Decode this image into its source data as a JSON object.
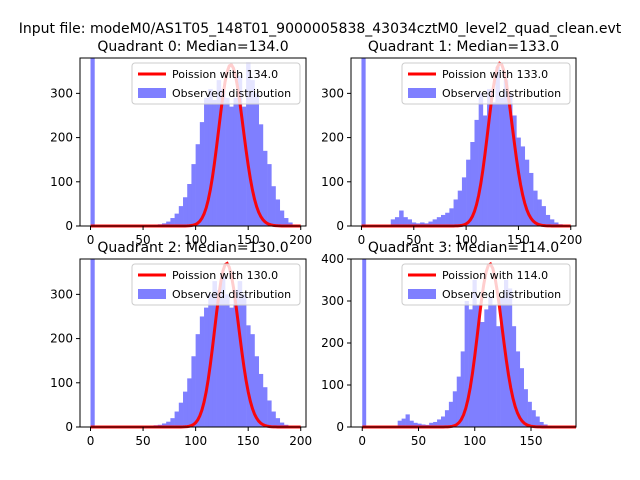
{
  "suptitle": "Input file: modeM0/AS1T05_148T01_9000005838_43034cztM0_level2_quad_clean.evt",
  "colors": {
    "observed": "#7f7fff",
    "poisson": "#ff0000"
  },
  "chart_data": [
    {
      "type": "bar",
      "title": "Quadrant 0: Median=134.0",
      "median": 134.0,
      "xlim": [
        -10,
        205
      ],
      "ylim": [
        0,
        380
      ],
      "xticks": [
        0,
        50,
        100,
        150,
        200
      ],
      "yticks": [
        0,
        100,
        200,
        300
      ],
      "legend": [
        "Poission with 134.0",
        "Observed distribution"
      ],
      "bin_width": 4,
      "zero_bin_count": 380,
      "observed": {
        "bin_starts": [
          48,
          52,
          56,
          60,
          64,
          68,
          72,
          76,
          80,
          84,
          88,
          92,
          96,
          100,
          104,
          108,
          112,
          116,
          120,
          124,
          128,
          132,
          136,
          140,
          144,
          148,
          152,
          156,
          160,
          164,
          168,
          172,
          176,
          180,
          184,
          188,
          192
        ],
        "counts": [
          1,
          1,
          2,
          3,
          4,
          6,
          10,
          18,
          28,
          45,
          65,
          95,
          140,
          185,
          235,
          290,
          310,
          285,
          330,
          310,
          290,
          270,
          290,
          340,
          270,
          370,
          330,
          300,
          230,
          170,
          140,
          90,
          60,
          35,
          18,
          8,
          3
        ]
      },
      "poisson_peak": 365
    },
    {
      "type": "bar",
      "title": "Quadrant 1: Median=133.0",
      "median": 133.0,
      "xlim": [
        -10,
        205
      ],
      "ylim": [
        0,
        380
      ],
      "xticks": [
        0,
        50,
        100,
        150,
        200
      ],
      "yticks": [
        0,
        100,
        200,
        300
      ],
      "legend": [
        "Poission with 133.0",
        "Observed distribution"
      ],
      "bin_width": 4,
      "zero_bin_count": 380,
      "observed": {
        "bin_starts": [
          28,
          32,
          36,
          40,
          44,
          48,
          52,
          56,
          60,
          64,
          68,
          72,
          76,
          80,
          84,
          88,
          92,
          96,
          100,
          104,
          108,
          112,
          116,
          120,
          124,
          128,
          132,
          136,
          140,
          144,
          148,
          152,
          156,
          160,
          164,
          168,
          172,
          176,
          180,
          184,
          188,
          192
        ],
        "counts": [
          15,
          20,
          35,
          20,
          15,
          8,
          6,
          8,
          6,
          10,
          15,
          20,
          25,
          30,
          40,
          60,
          80,
          110,
          150,
          190,
          240,
          300,
          250,
          310,
          280,
          360,
          290,
          330,
          300,
          250,
          200,
          180,
          150,
          120,
          80,
          60,
          45,
          25,
          15,
          8,
          4,
          2
        ]
      },
      "poisson_peak": 368
    },
    {
      "type": "bar",
      "title": "Quadrant 2: Median=130.0",
      "median": 130.0,
      "xlim": [
        -10,
        205
      ],
      "ylim": [
        0,
        380
      ],
      "xticks": [
        0,
        50,
        100,
        150,
        200
      ],
      "yticks": [
        0,
        100,
        200,
        300
      ],
      "legend": [
        "Poission with 130.0",
        "Observed distribution"
      ],
      "bin_width": 4,
      "zero_bin_count": 380,
      "observed": {
        "bin_starts": [
          48,
          52,
          56,
          60,
          64,
          68,
          72,
          76,
          80,
          84,
          88,
          92,
          96,
          100,
          104,
          108,
          112,
          116,
          120,
          124,
          128,
          132,
          136,
          140,
          144,
          148,
          152,
          156,
          160,
          164,
          168,
          172,
          176,
          180,
          184,
          188
        ],
        "counts": [
          1,
          2,
          3,
          4,
          5,
          8,
          12,
          20,
          35,
          55,
          80,
          110,
          160,
          210,
          250,
          270,
          300,
          330,
          310,
          340,
          300,
          270,
          310,
          330,
          300,
          230,
          210,
          160,
          120,
          90,
          60,
          35,
          20,
          10,
          5,
          2
        ]
      },
      "poisson_peak": 370
    },
    {
      "type": "bar",
      "title": "Quadrant 3: Median=114.0",
      "median": 114.0,
      "xlim": [
        -10,
        190
      ],
      "ylim": [
        0,
        400
      ],
      "xticks": [
        0,
        50,
        100,
        150
      ],
      "yticks": [
        0,
        100,
        200,
        300,
        400
      ],
      "legend": [
        "Poission with 114.0",
        "Observed distribution"
      ],
      "bin_width": 3.5,
      "zero_bin_count": 400,
      "observed": {
        "bin_starts": [
          31.5,
          35,
          38.5,
          42,
          45.5,
          49,
          52.5,
          56,
          59.5,
          63,
          66.5,
          70,
          73.5,
          77,
          80.5,
          84,
          87.5,
          91,
          94.5,
          98,
          101.5,
          105,
          108.5,
          112,
          115.5,
          119,
          122.5,
          126,
          129.5,
          133,
          136.5,
          140,
          143.5,
          147,
          150.5,
          154,
          157.5,
          161,
          164.5,
          168
        ],
        "counts": [
          15,
          20,
          30,
          15,
          10,
          8,
          6,
          5,
          10,
          12,
          18,
          25,
          40,
          60,
          85,
          120,
          180,
          300,
          280,
          350,
          290,
          250,
          280,
          310,
          290,
          240,
          310,
          350,
          330,
          240,
          180,
          140,
          90,
          60,
          40,
          25,
          12,
          6,
          3,
          2
        ]
      },
      "poisson_peak": 388
    }
  ]
}
